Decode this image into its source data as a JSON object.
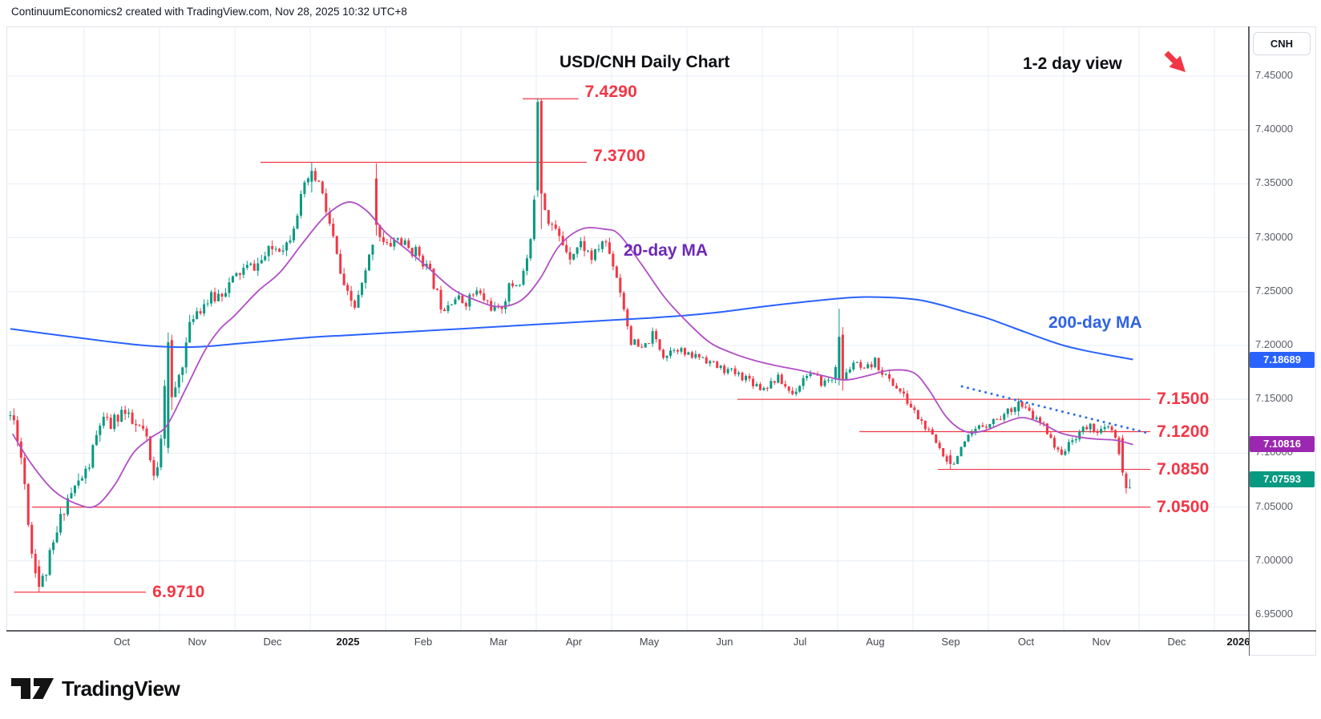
{
  "header": {
    "credit": "ContinuumEconomics2 created with TradingView.com, Nov 28, 2025 10:32 UTC+8"
  },
  "chart": {
    "title": "USD/CNH Daily Chart",
    "view_note": "1-2 day view"
  },
  "price_axis": {
    "symbol_button": "CNH"
  },
  "footer": {
    "brand": "TradingView"
  },
  "colors": {
    "up_candle": "#089981",
    "down_candle": "#f23645",
    "level_red": "#f23645",
    "ma20_line": "#b14fc4",
    "ma20_label": "#6d28b8",
    "ma200_line": "#2962ff",
    "ma200_label": "#2f62e4",
    "trendline_dotted": "#2f6fe4",
    "grid": "#e7eef6",
    "axis_separator": "#2a2d35",
    "frame_border": "#e0e3eb",
    "badge_blue": "#2962ff",
    "badge_purple": "#9c27b0",
    "badge_green": "#089981",
    "axis_text": "#5a5d66",
    "month_text": "#44474f",
    "arrow_red": "#f23645"
  },
  "chart_data": {
    "type": "candlestick",
    "symbol": "USD/CNH",
    "timeframe": "Daily",
    "title": "USD/CNH Daily Chart",
    "visible_price_range": [
      6.935,
      7.496
    ],
    "y_axis": {
      "ticks": [
        "7.45000",
        "7.40000",
        "7.35000",
        "7.30000",
        "7.25000",
        "7.20000",
        "7.15000",
        "7.10000",
        "7.05000",
        "7.00000",
        "6.95000"
      ]
    },
    "x_axis": {
      "months": [
        {
          "label": "Oct",
          "bold": false
        },
        {
          "label": "Nov",
          "bold": false
        },
        {
          "label": "Dec",
          "bold": false
        },
        {
          "label": "2025",
          "bold": true
        },
        {
          "label": "Feb",
          "bold": false
        },
        {
          "label": "Mar",
          "bold": false
        },
        {
          "label": "Apr",
          "bold": false
        },
        {
          "label": "May",
          "bold": false
        },
        {
          "label": "Jun",
          "bold": false
        },
        {
          "label": "Jul",
          "bold": false
        },
        {
          "label": "Aug",
          "bold": false
        },
        {
          "label": "Sep",
          "bold": false
        },
        {
          "label": "Oct",
          "bold": false
        },
        {
          "label": "Nov",
          "bold": false
        },
        {
          "label": "Dec",
          "bold": false
        },
        {
          "label": "2026",
          "bold": true
        }
      ]
    },
    "levels": [
      {
        "price": 7.429,
        "label": "7.4290",
        "t1": 6.82,
        "t2": 7.56,
        "label_above": true
      },
      {
        "price": 7.37,
        "label": "7.3700",
        "t1": 3.34,
        "t2": 7.67,
        "label_above": true
      },
      {
        "price": 7.15,
        "label": "7.1500",
        "t1": 9.67,
        "t2": 15.15,
        "label_above": false
      },
      {
        "price": 7.12,
        "label": "7.1200",
        "t1": 11.29,
        "t2": 15.15,
        "label_above": false
      },
      {
        "price": 7.085,
        "label": "7.0850",
        "t1": 12.33,
        "t2": 15.15,
        "label_above": false
      },
      {
        "price": 7.05,
        "label": "7.0500",
        "t1": 0.31,
        "t2": 15.15,
        "label_above": false
      },
      {
        "price": 6.971,
        "label": "6.9710",
        "t1": 0.07,
        "t2": 1.82,
        "label_above": false
      }
    ],
    "trendline": {
      "style": "dotted",
      "from_t": 12.65,
      "from_price": 7.162,
      "to_t": 15.1,
      "to_price": 7.119
    },
    "ma20": {
      "label": "20-day MA",
      "last_value": 7.10816,
      "points": [
        [
          0.05,
          7.118
        ],
        [
          0.3,
          7.09
        ],
        [
          0.6,
          7.065
        ],
        [
          0.9,
          7.053
        ],
        [
          1.15,
          7.051
        ],
        [
          1.4,
          7.07
        ],
        [
          1.65,
          7.1
        ],
        [
          1.9,
          7.115
        ],
        [
          2.1,
          7.126
        ],
        [
          2.35,
          7.16
        ],
        [
          2.6,
          7.195
        ],
        [
          2.8,
          7.215
        ],
        [
          3.0,
          7.228
        ],
        [
          3.3,
          7.25
        ],
        [
          3.6,
          7.268
        ],
        [
          3.9,
          7.295
        ],
        [
          4.2,
          7.32
        ],
        [
          4.5,
          7.333
        ],
        [
          4.75,
          7.325
        ],
        [
          5.0,
          7.305
        ],
        [
          5.3,
          7.288
        ],
        [
          5.6,
          7.27
        ],
        [
          5.9,
          7.252
        ],
        [
          6.2,
          7.242
        ],
        [
          6.5,
          7.236
        ],
        [
          6.8,
          7.242
        ],
        [
          7.05,
          7.262
        ],
        [
          7.3,
          7.292
        ],
        [
          7.6,
          7.308
        ],
        [
          7.9,
          7.308
        ],
        [
          8.1,
          7.303
        ],
        [
          8.4,
          7.275
        ],
        [
          8.7,
          7.245
        ],
        [
          9.0,
          7.222
        ],
        [
          9.3,
          7.203
        ],
        [
          9.6,
          7.193
        ],
        [
          9.9,
          7.186
        ],
        [
          10.2,
          7.181
        ],
        [
          10.5,
          7.177
        ],
        [
          10.8,
          7.172
        ],
        [
          11.1,
          7.168
        ],
        [
          11.4,
          7.172
        ],
        [
          11.7,
          7.177
        ],
        [
          12.0,
          7.175
        ],
        [
          12.2,
          7.16
        ],
        [
          12.45,
          7.133
        ],
        [
          12.7,
          7.12
        ],
        [
          12.95,
          7.121
        ],
        [
          13.2,
          7.128
        ],
        [
          13.45,
          7.133
        ],
        [
          13.7,
          7.128
        ],
        [
          13.95,
          7.119
        ],
        [
          14.2,
          7.115
        ],
        [
          14.45,
          7.113
        ],
        [
          14.7,
          7.112
        ],
        [
          14.92,
          7.108
        ]
      ]
    },
    "ma200": {
      "label": "200-day MA",
      "last_value": 7.18689,
      "points": [
        [
          0.02,
          7.2155
        ],
        [
          0.5,
          7.211
        ],
        [
          1.0,
          7.2065
        ],
        [
          1.4,
          7.203
        ],
        [
          1.8,
          7.2
        ],
        [
          2.2,
          7.1985
        ],
        [
          2.6,
          7.199
        ],
        [
          3.0,
          7.2015
        ],
        [
          3.5,
          7.2045
        ],
        [
          4.0,
          7.2075
        ],
        [
          4.5,
          7.2095
        ],
        [
          5.0,
          7.2115
        ],
        [
          5.5,
          7.2135
        ],
        [
          6.0,
          7.2155
        ],
        [
          6.5,
          7.2175
        ],
        [
          7.0,
          7.2195
        ],
        [
          7.5,
          7.2215
        ],
        [
          8.0,
          7.2235
        ],
        [
          8.5,
          7.2255
        ],
        [
          9.0,
          7.228
        ],
        [
          9.5,
          7.2315
        ],
        [
          10.0,
          7.236
        ],
        [
          10.5,
          7.24
        ],
        [
          11.0,
          7.2435
        ],
        [
          11.4,
          7.245
        ],
        [
          12.0,
          7.243
        ],
        [
          12.35,
          7.238
        ],
        [
          12.7,
          7.231
        ],
        [
          13.0,
          7.225
        ],
        [
          13.35,
          7.216
        ],
        [
          13.7,
          7.207
        ],
        [
          14.0,
          7.2
        ],
        [
          14.3,
          7.195
        ],
        [
          14.6,
          7.191
        ],
        [
          14.92,
          7.187
        ]
      ]
    },
    "price_anchors": [
      [
        0.02,
        7.135
      ],
      [
        0.1,
        7.125
      ],
      [
        0.2,
        7.08
      ],
      [
        0.3,
        7.01
      ],
      [
        0.42,
        6.976
      ],
      [
        0.5,
        6.992
      ],
      [
        0.62,
        7.02
      ],
      [
        0.75,
        7.055
      ],
      [
        0.9,
        7.07
      ],
      [
        1.05,
        7.085
      ],
      [
        1.22,
        7.13
      ],
      [
        1.35,
        7.125
      ],
      [
        1.5,
        7.14
      ],
      [
        1.65,
        7.125
      ],
      [
        1.8,
        7.12
      ],
      [
        1.92,
        7.075
      ],
      [
        2.0,
        7.1
      ],
      [
        2.1,
        7.2
      ],
      [
        2.18,
        7.15
      ],
      [
        2.3,
        7.185
      ],
      [
        2.45,
        7.23
      ],
      [
        2.6,
        7.24
      ],
      [
        2.75,
        7.245
      ],
      [
        2.9,
        7.255
      ],
      [
        3.1,
        7.27
      ],
      [
        3.3,
        7.275
      ],
      [
        3.5,
        7.29
      ],
      [
        3.7,
        7.295
      ],
      [
        3.85,
        7.33
      ],
      [
        4.0,
        7.36
      ],
      [
        4.12,
        7.35
      ],
      [
        4.3,
        7.3
      ],
      [
        4.45,
        7.25
      ],
      [
        4.6,
        7.235
      ],
      [
        4.75,
        7.27
      ],
      [
        4.87,
        7.312
      ],
      [
        5.0,
        7.29
      ],
      [
        5.15,
        7.3
      ],
      [
        5.3,
        7.29
      ],
      [
        5.45,
        7.285
      ],
      [
        5.6,
        7.265
      ],
      [
        5.75,
        7.235
      ],
      [
        5.9,
        7.245
      ],
      [
        6.05,
        7.24
      ],
      [
        6.2,
        7.25
      ],
      [
        6.35,
        7.24
      ],
      [
        6.5,
        7.23
      ],
      [
        6.65,
        7.255
      ],
      [
        6.8,
        7.26
      ],
      [
        6.95,
        7.3
      ],
      [
        7.02,
        7.426
      ],
      [
        7.07,
        7.341
      ],
      [
        7.15,
        7.32
      ],
      [
        7.3,
        7.3
      ],
      [
        7.45,
        7.285
      ],
      [
        7.6,
        7.295
      ],
      [
        7.75,
        7.28
      ],
      [
        7.9,
        7.3
      ],
      [
        8.05,
        7.27
      ],
      [
        8.15,
        7.24
      ],
      [
        8.25,
        7.205
      ],
      [
        8.4,
        7.195
      ],
      [
        8.55,
        7.21
      ],
      [
        8.7,
        7.19
      ],
      [
        8.85,
        7.2
      ],
      [
        9.0,
        7.19
      ],
      [
        9.2,
        7.19
      ],
      [
        9.4,
        7.18
      ],
      [
        9.6,
        7.175
      ],
      [
        9.8,
        7.17
      ],
      [
        10.0,
        7.16
      ],
      [
        10.2,
        7.17
      ],
      [
        10.4,
        7.155
      ],
      [
        10.6,
        7.175
      ],
      [
        10.8,
        7.165
      ],
      [
        10.95,
        7.17
      ],
      [
        11.02,
        7.21
      ],
      [
        11.08,
        7.168
      ],
      [
        11.2,
        7.185
      ],
      [
        11.35,
        7.175
      ],
      [
        11.5,
        7.185
      ],
      [
        11.65,
        7.17
      ],
      [
        11.8,
        7.16
      ],
      [
        11.95,
        7.145
      ],
      [
        12.1,
        7.13
      ],
      [
        12.25,
        7.115
      ],
      [
        12.4,
        7.1
      ],
      [
        12.5,
        7.09
      ],
      [
        12.62,
        7.1
      ],
      [
        12.75,
        7.115
      ],
      [
        12.9,
        7.125
      ],
      [
        13.05,
        7.13
      ],
      [
        13.2,
        7.135
      ],
      [
        13.35,
        7.145
      ],
      [
        13.5,
        7.14
      ],
      [
        13.65,
        7.13
      ],
      [
        13.8,
        7.12
      ],
      [
        13.92,
        7.1
      ],
      [
        14.05,
        7.105
      ],
      [
        14.2,
        7.12
      ],
      [
        14.35,
        7.125
      ],
      [
        14.5,
        7.12
      ],
      [
        14.62,
        7.124
      ],
      [
        14.7,
        7.11
      ],
      [
        14.78,
        7.082
      ],
      [
        14.85,
        7.068
      ],
      [
        14.92,
        7.076
      ]
    ],
    "feature_candles": [
      [
        0.42,
        6.995,
        7.001,
        6.971,
        6.976
      ],
      [
        2.1,
        7.105,
        7.212,
        7.1,
        7.203
      ],
      [
        2.16,
        7.205,
        7.21,
        7.14,
        7.152
      ],
      [
        4.0,
        7.352,
        7.3695,
        7.342,
        7.362
      ],
      [
        4.87,
        7.355,
        7.369,
        7.302,
        7.312
      ],
      [
        7.02,
        7.344,
        7.4295,
        7.338,
        7.426
      ],
      [
        7.07,
        7.427,
        7.429,
        7.308,
        7.341
      ],
      [
        11.02,
        7.168,
        7.234,
        7.163,
        7.208
      ],
      [
        11.08,
        7.21,
        7.217,
        7.158,
        7.168
      ],
      [
        12.5,
        7.098,
        7.103,
        7.0852,
        7.09
      ],
      [
        13.4,
        7.139,
        7.151,
        7.134,
        7.148
      ],
      [
        14.78,
        7.114,
        7.117,
        7.079,
        7.082
      ],
      [
        14.85,
        7.081,
        7.083,
        7.0625,
        7.0675
      ],
      [
        14.92,
        7.068,
        7.0805,
        7.0655,
        7.076
      ]
    ],
    "last_price_badges": [
      {
        "value": "7.18689",
        "price": 7.18689,
        "color": "#2962ff",
        "series": "200-day MA"
      },
      {
        "value": "7.10816",
        "price": 7.10816,
        "color": "#9c27b0",
        "series": "20-day MA"
      },
      {
        "value": "7.07593",
        "price": 7.07593,
        "color": "#089981",
        "series": "last close"
      }
    ],
    "synth": {
      "seed": 11,
      "t_start": 0.02,
      "t_end": 14.92,
      "days_per_month": 21,
      "close_noise": 0.0052,
      "wick_noise": 0.0045,
      "volatility_anchors": [
        [
          0.0,
          1.7
        ],
        [
          1.5,
          1.4
        ],
        [
          2.2,
          1.6
        ],
        [
          3.0,
          1.2
        ],
        [
          4.5,
          1.3
        ],
        [
          6.0,
          1.0
        ],
        [
          7.2,
          1.3
        ],
        [
          8.0,
          1.0
        ],
        [
          9.0,
          0.75
        ],
        [
          11.0,
          0.8
        ],
        [
          12.0,
          0.8
        ],
        [
          14.0,
          0.7
        ],
        [
          14.92,
          0.8
        ]
      ]
    }
  }
}
